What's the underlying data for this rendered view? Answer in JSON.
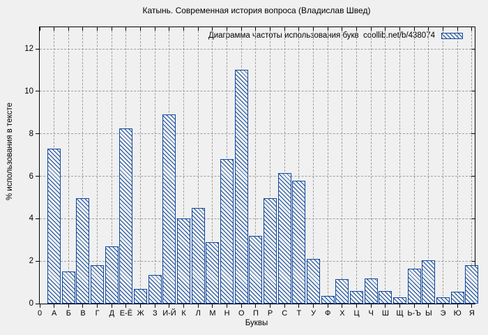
{
  "chart_data": {
    "type": "bar",
    "title": "Катынь. Современная история вопроса (Владислав Швед)",
    "xlabel": "Буквы",
    "ylabel": "% использования в тексте",
    "legend_label": "Диаграмма частоты использования букв  coollib.net/b/438074",
    "legend_position": "top-right-inside",
    "grid": true,
    "x_first_tick_label": "0",
    "categories": [
      "А",
      "Б",
      "В",
      "Г",
      "Д",
      "Е-Ё",
      "Ж",
      "З",
      "И-Й",
      "К",
      "Л",
      "М",
      "Н",
      "О",
      "П",
      "Р",
      "С",
      "Т",
      "У",
      "Ф",
      "Х",
      "Ц",
      "Ч",
      "Ш",
      "Щ",
      "Ь-Ъ",
      "Ы",
      "Э",
      "Ю",
      "Я"
    ],
    "values": [
      7.3,
      1.5,
      4.95,
      1.8,
      2.7,
      8.25,
      0.7,
      1.35,
      8.9,
      4.0,
      4.5,
      2.9,
      6.8,
      11.0,
      3.2,
      4.95,
      6.15,
      5.8,
      2.1,
      0.35,
      1.15,
      0.6,
      1.2,
      0.6,
      0.3,
      1.65,
      2.05,
      0.3,
      0.55,
      1.8
    ],
    "yticks": [
      0,
      2,
      4,
      6,
      8,
      10,
      12
    ],
    "ylim": [
      0,
      13.02
    ],
    "xlim": [
      0,
      30.2
    ],
    "colors": {
      "bar_edge": "#10489e",
      "bar_fill": "#f0f0f0",
      "hatch": "diagonal-backslash",
      "grid": "#9e9e9e",
      "frame": "#000000",
      "background": "#f0f0f0"
    }
  }
}
